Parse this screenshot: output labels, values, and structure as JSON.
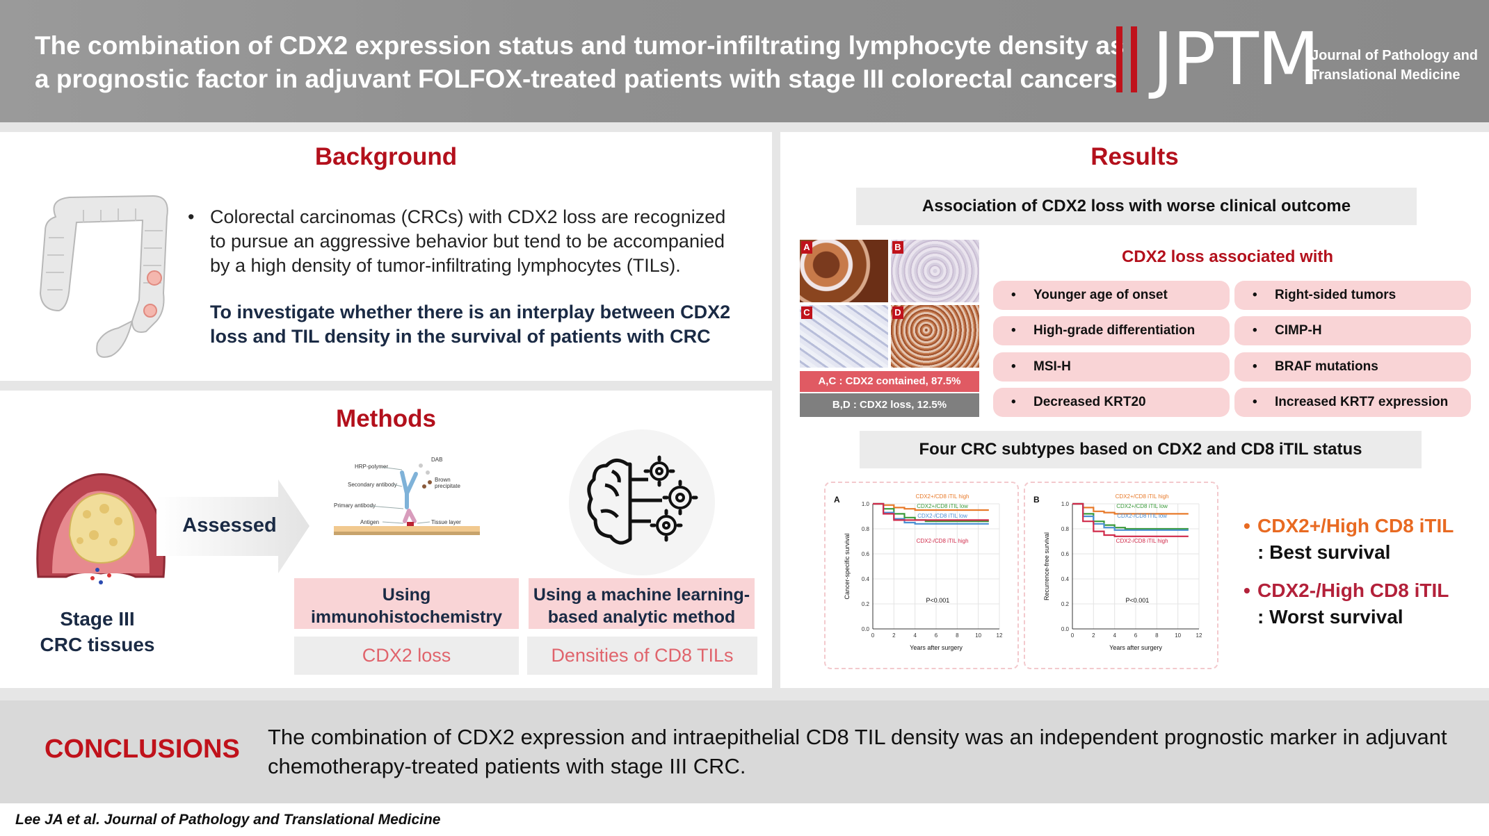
{
  "header": {
    "title_line1": "The combination of CDX2 expression status and tumor-infiltrating lymphocyte density as",
    "title_line2": "a prognostic factor in adjuvant FOLFOX-treated patients with stage III colorectal cancers",
    "logo_text": "JPTM",
    "logo_sub_line1": "Journal of Pathology and",
    "logo_sub_line2": "Translational Medicine"
  },
  "background": {
    "title": "Background",
    "bullet": "•",
    "point": "Colorectal carcinomas (CRCs) with CDX2 loss are recognized to pursue an aggressive behavior but tend to be accompanied by a high density of tumor-infiltrating lymphocytes (TILs).",
    "aim": "To investigate whether there is an interplay between CDX2 loss and TIL density in the survival of patients with CRC"
  },
  "methods": {
    "title": "Methods",
    "sample_line1": "Stage III",
    "sample_line2": "CRC tissues",
    "assessed": "Assessed",
    "ihc_labels": {
      "dab": "DAB",
      "hrp": "HRP-polymer",
      "secondary": "Secondary antibody",
      "brown1": "Brown",
      "brown2": "precipitate",
      "primary": "Primary antibody",
      "antigen": "Antigen",
      "tissue": "Tissue layer"
    },
    "ihc_box_line1": "Using",
    "ihc_box_line2": "immunohistochemistry",
    "ml_box_line1": "Using a machine learning-",
    "ml_box_line2": "based analytic method",
    "ihc_result": "CDX2 loss",
    "ml_result": "Densities of CD8 TILs"
  },
  "results": {
    "title": "Results",
    "association_heading": "Association of CDX2 loss with worse clinical outcome",
    "panel_labels": [
      "A",
      "B",
      "C",
      "D"
    ],
    "caption_ac": "A,C : CDX2 contained, 87.5%",
    "caption_bd": "B,D : CDX2 loss, 12.5%",
    "loss_heading": "CDX2 loss associated with",
    "bullet": "•",
    "associations_left": [
      "Younger age of onset",
      "High-grade differentiation",
      "MSI-H",
      "Decreased KRT20"
    ],
    "associations_right": [
      "Right-sided tumors",
      "CIMP-H",
      "BRAF mutations",
      "Increased KRT7 expression"
    ],
    "subtypes_heading": "Four CRC subtypes based on CDX2 and CD8 iTIL status",
    "outcome_best_head": "CDX2+/High CD8 iTIL",
    "outcome_best_sub": ": Best survival",
    "outcome_worst_head": "CDX2-/High CD8 iTIL",
    "outcome_worst_sub": ": Worst survival",
    "outcome_best_color": "#e86a22",
    "outcome_worst_color": "#b3213a"
  },
  "chart_data": [
    {
      "type": "line",
      "panel": "A",
      "title": "",
      "xlabel": "Years after surgery",
      "ylabel": "Cancer-specific survival",
      "xlim": [
        0,
        12
      ],
      "ylim": [
        0.0,
        1.0
      ],
      "xticks": [
        "0",
        "2",
        "4",
        "6",
        "8",
        "10",
        "12"
      ],
      "yticks": [
        "0.0",
        "0.2",
        "0.4",
        "0.6",
        "0.8",
        "1.0"
      ],
      "pvalue": "P<0.001",
      "series": [
        {
          "name": "CDX2+/CD8 iTIL high",
          "color": "#e87a2a",
          "x": [
            0,
            1,
            2,
            3,
            4,
            5,
            6,
            8,
            10,
            11
          ],
          "y": [
            1.0,
            0.99,
            0.97,
            0.96,
            0.95,
            0.95,
            0.95,
            0.95,
            0.95,
            0.95
          ]
        },
        {
          "name": "CDX2+/CD8 iTIL low",
          "color": "#3a9a3a",
          "x": [
            0,
            1,
            2,
            3,
            4,
            5,
            6,
            8,
            10,
            11
          ],
          "y": [
            1.0,
            0.96,
            0.92,
            0.89,
            0.87,
            0.86,
            0.86,
            0.86,
            0.86,
            0.86
          ]
        },
        {
          "name": "CDX2-/CD8 iTIL low",
          "color": "#4a8fd4",
          "x": [
            0,
            1,
            2,
            3,
            4,
            5,
            6,
            8,
            10,
            11
          ],
          "y": [
            1.0,
            0.93,
            0.88,
            0.85,
            0.84,
            0.84,
            0.84,
            0.84,
            0.84,
            0.84
          ]
        },
        {
          "name": "CDX2-/CD8 iTIL high",
          "color": "#d02a4a",
          "x": [
            0,
            1,
            2,
            3,
            4,
            5,
            6,
            8,
            10,
            11
          ],
          "y": [
            1.0,
            0.92,
            0.87,
            0.87,
            0.87,
            0.87,
            0.87,
            0.87,
            0.87,
            0.87
          ]
        }
      ]
    },
    {
      "type": "line",
      "panel": "B",
      "title": "",
      "xlabel": "Years after surgery",
      "ylabel": "Recurrence-free survival",
      "xlim": [
        0,
        12
      ],
      "ylim": [
        0.0,
        1.0
      ],
      "xticks": [
        "0",
        "2",
        "4",
        "6",
        "8",
        "10",
        "12"
      ],
      "yticks": [
        "0.0",
        "0.2",
        "0.4",
        "0.6",
        "0.8",
        "1.0"
      ],
      "pvalue": "P<0.001",
      "series": [
        {
          "name": "CDX2+/CD8 iTIL high",
          "color": "#e87a2a",
          "x": [
            0,
            1,
            2,
            3,
            4,
            5,
            6,
            8,
            10,
            11
          ],
          "y": [
            1.0,
            0.97,
            0.94,
            0.93,
            0.92,
            0.92,
            0.92,
            0.92,
            0.92,
            0.92
          ]
        },
        {
          "name": "CDX2+/CD8 iTIL low",
          "color": "#3a9a3a",
          "x": [
            0,
            1,
            2,
            3,
            4,
            5,
            6,
            8,
            10,
            11
          ],
          "y": [
            1.0,
            0.92,
            0.86,
            0.83,
            0.81,
            0.8,
            0.8,
            0.8,
            0.8,
            0.8
          ]
        },
        {
          "name": "CDX2-/CD8 iTIL low",
          "color": "#4a8fd4",
          "x": [
            0,
            1,
            2,
            3,
            4,
            5,
            6,
            8,
            10,
            11
          ],
          "y": [
            1.0,
            0.9,
            0.84,
            0.81,
            0.79,
            0.79,
            0.79,
            0.79,
            0.79,
            0.79
          ]
        },
        {
          "name": "CDX2-/CD8 iTIL high",
          "color": "#d02a4a",
          "x": [
            0,
            1,
            2,
            3,
            4,
            5,
            6,
            8,
            10,
            11
          ],
          "y": [
            1.0,
            0.86,
            0.78,
            0.75,
            0.74,
            0.74,
            0.74,
            0.74,
            0.74,
            0.74
          ]
        }
      ]
    }
  ],
  "conclusions": {
    "title": "CONCLUSIONS",
    "text": "The combination of CDX2 expression and intraepithelial CD8 TIL density was an independent prognostic marker in adjuvant chemotherapy-treated patients with stage III CRC."
  },
  "citation": "Lee JA et al. Journal of Pathology and Translational Medicine",
  "colors": {
    "accent_red": "#b3101c",
    "pill_pink": "#f9d4d6",
    "header_grey": "#929292",
    "panel_grey": "#ebebeb"
  }
}
